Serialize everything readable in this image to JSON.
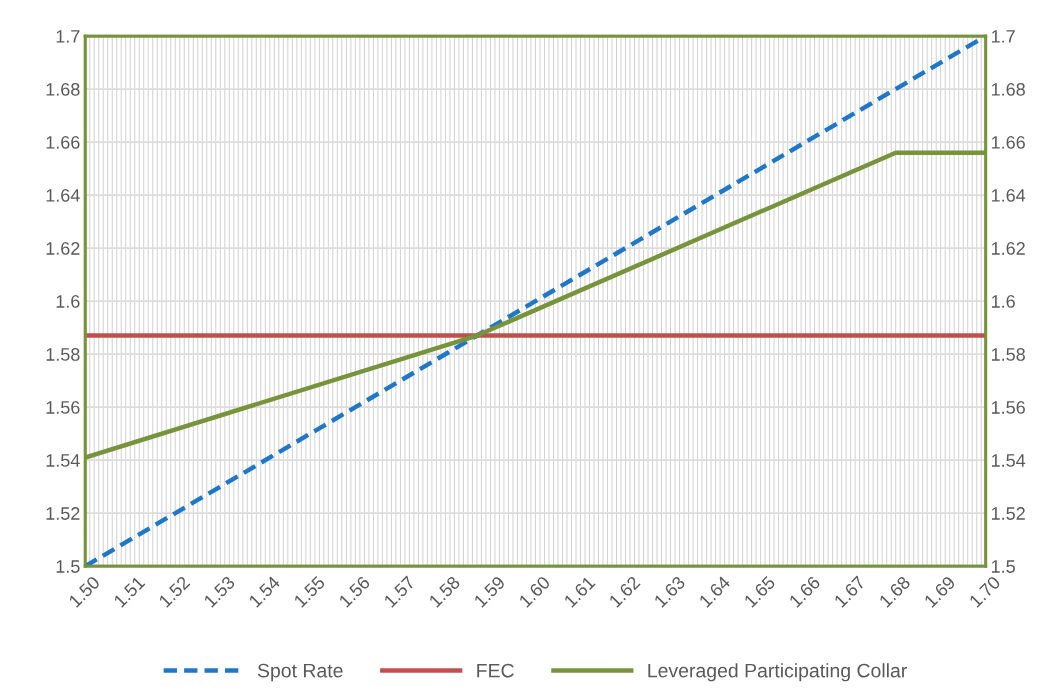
{
  "chart_data": {
    "type": "line",
    "series": [
      {
        "name": "Spot Rate",
        "color": "#1f77c8",
        "line_style": "dashed",
        "x": [
          1.5,
          1.7
        ],
        "values": [
          1.5,
          1.7
        ]
      },
      {
        "name": "FEC",
        "color": "#c0504d",
        "line_style": "solid",
        "x": [
          1.5,
          1.7
        ],
        "values": [
          1.587,
          1.587
        ]
      },
      {
        "name": "Leveraged Participating Collar",
        "color": "#77933c",
        "line_style": "solid",
        "x": [
          1.5,
          1.587,
          1.68,
          1.7
        ],
        "values": [
          1.541,
          1.587,
          1.656,
          1.656
        ]
      }
    ],
    "xlim": [
      1.5,
      1.7
    ],
    "xticks": [
      {
        "value": 1.5,
        "label": "1.50"
      },
      {
        "value": 1.51,
        "label": "1.51"
      },
      {
        "value": 1.52,
        "label": "1.52"
      },
      {
        "value": 1.53,
        "label": "1.53"
      },
      {
        "value": 1.54,
        "label": "1.54"
      },
      {
        "value": 1.55,
        "label": "1.55"
      },
      {
        "value": 1.56,
        "label": "1.56"
      },
      {
        "value": 1.57,
        "label": "1.57"
      },
      {
        "value": 1.58,
        "label": "1.58"
      },
      {
        "value": 1.59,
        "label": "1.59"
      },
      {
        "value": 1.6,
        "label": "1.60"
      },
      {
        "value": 1.61,
        "label": "1.61"
      },
      {
        "value": 1.62,
        "label": "1.62"
      },
      {
        "value": 1.63,
        "label": "1.63"
      },
      {
        "value": 1.64,
        "label": "1.64"
      },
      {
        "value": 1.65,
        "label": "1.65"
      },
      {
        "value": 1.66,
        "label": "1.66"
      },
      {
        "value": 1.67,
        "label": "1.67"
      },
      {
        "value": 1.68,
        "label": "1.68"
      },
      {
        "value": 1.69,
        "label": "1.69"
      },
      {
        "value": 1.7,
        "label": "1.70"
      }
    ],
    "ylim": [
      1.5,
      1.7
    ],
    "yticks": [
      1.5,
      1.52,
      1.54,
      1.56,
      1.58,
      1.6,
      1.62,
      1.64,
      1.66,
      1.68,
      1.7
    ],
    "y2lim": [
      1.5,
      1.7
    ],
    "y2ticks": [
      1.5,
      1.52,
      1.54,
      1.56,
      1.58,
      1.6,
      1.62,
      1.64,
      1.66,
      1.68,
      1.7
    ],
    "grid": true,
    "legend": "bottom",
    "marker": "none"
  }
}
